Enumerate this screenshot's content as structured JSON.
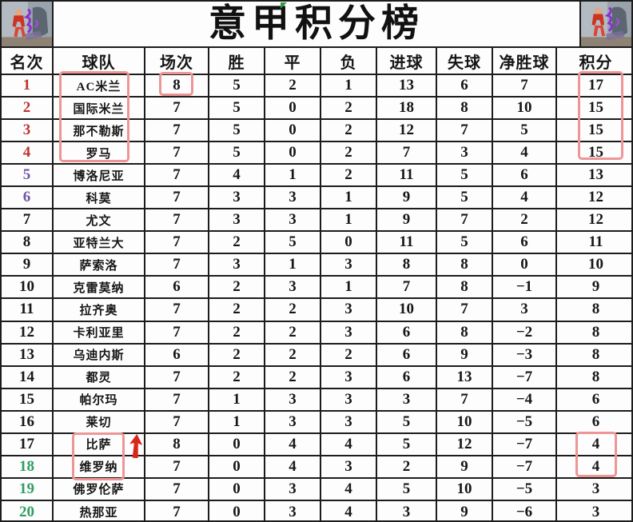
{
  "title": "意甲积分榜",
  "images": {
    "left": "soccer-players-collage",
    "right": "soccer-players-collage"
  },
  "chart_data": {
    "type": "table",
    "title": "意甲积分榜",
    "columns": [
      "名次",
      "球队",
      "场次",
      "胜",
      "平",
      "负",
      "进球",
      "失球",
      "净胜球",
      "积分"
    ],
    "rows": [
      {
        "rank": "1",
        "color": "red",
        "team": "AC米兰",
        "played": "8",
        "wins": "5",
        "draws": "2",
        "losses": "1",
        "goals_for": "13",
        "goals_against": "6",
        "goal_diff": "7",
        "points": "17"
      },
      {
        "rank": "2",
        "color": "red",
        "team": "国际米兰",
        "played": "7",
        "wins": "5",
        "draws": "0",
        "losses": "2",
        "goals_for": "18",
        "goals_against": "8",
        "goal_diff": "10",
        "points": "15"
      },
      {
        "rank": "3",
        "color": "red",
        "team": "那不勒斯",
        "played": "7",
        "wins": "5",
        "draws": "0",
        "losses": "2",
        "goals_for": "12",
        "goals_against": "7",
        "goal_diff": "5",
        "points": "15"
      },
      {
        "rank": "4",
        "color": "red",
        "team": "罗马",
        "played": "7",
        "wins": "5",
        "draws": "0",
        "losses": "2",
        "goals_for": "7",
        "goals_against": "3",
        "goal_diff": "4",
        "points": "15"
      },
      {
        "rank": "5",
        "color": "purple",
        "team": "博洛尼亚",
        "played": "7",
        "wins": "4",
        "draws": "1",
        "losses": "2",
        "goals_for": "11",
        "goals_against": "5",
        "goal_diff": "6",
        "points": "13"
      },
      {
        "rank": "6",
        "color": "purple",
        "team": "科莫",
        "played": "7",
        "wins": "3",
        "draws": "3",
        "losses": "1",
        "goals_for": "9",
        "goals_against": "5",
        "goal_diff": "4",
        "points": "12"
      },
      {
        "rank": "7",
        "color": "black",
        "team": "尤文",
        "played": "7",
        "wins": "3",
        "draws": "3",
        "losses": "1",
        "goals_for": "9",
        "goals_against": "7",
        "goal_diff": "2",
        "points": "12"
      },
      {
        "rank": "8",
        "color": "black",
        "team": "亚特兰大",
        "played": "7",
        "wins": "2",
        "draws": "5",
        "losses": "0",
        "goals_for": "11",
        "goals_against": "5",
        "goal_diff": "6",
        "points": "11"
      },
      {
        "rank": "9",
        "color": "black",
        "team": "萨索洛",
        "played": "7",
        "wins": "3",
        "draws": "1",
        "losses": "3",
        "goals_for": "8",
        "goals_against": "8",
        "goal_diff": "0",
        "points": "10"
      },
      {
        "rank": "10",
        "color": "black",
        "team": "克雷莫纳",
        "played": "6",
        "wins": "2",
        "draws": "3",
        "losses": "1",
        "goals_for": "7",
        "goals_against": "8",
        "goal_diff": "−1",
        "points": "9"
      },
      {
        "rank": "11",
        "color": "black",
        "team": "拉齐奥",
        "played": "7",
        "wins": "2",
        "draws": "2",
        "losses": "3",
        "goals_for": "10",
        "goals_against": "7",
        "goal_diff": "3",
        "points": "8"
      },
      {
        "rank": "12",
        "color": "black",
        "team": "卡利亚里",
        "played": "7",
        "wins": "2",
        "draws": "2",
        "losses": "3",
        "goals_for": "6",
        "goals_against": "8",
        "goal_diff": "−2",
        "points": "8"
      },
      {
        "rank": "13",
        "color": "black",
        "team": "乌迪内斯",
        "played": "6",
        "wins": "2",
        "draws": "2",
        "losses": "2",
        "goals_for": "6",
        "goals_against": "9",
        "goal_diff": "−3",
        "points": "8"
      },
      {
        "rank": "14",
        "color": "black",
        "team": "都灵",
        "played": "7",
        "wins": "2",
        "draws": "2",
        "losses": "3",
        "goals_for": "6",
        "goals_against": "13",
        "goal_diff": "−7",
        "points": "8"
      },
      {
        "rank": "15",
        "color": "black",
        "team": "帕尔玛",
        "played": "7",
        "wins": "1",
        "draws": "3",
        "losses": "3",
        "goals_for": "3",
        "goals_against": "7",
        "goal_diff": "−4",
        "points": "6"
      },
      {
        "rank": "16",
        "color": "black",
        "team": "莱切",
        "played": "7",
        "wins": "1",
        "draws": "3",
        "losses": "3",
        "goals_for": "5",
        "goals_against": "10",
        "goal_diff": "−5",
        "points": "6"
      },
      {
        "rank": "17",
        "color": "black",
        "team": "比萨",
        "played": "8",
        "wins": "0",
        "draws": "4",
        "losses": "4",
        "goals_for": "5",
        "goals_against": "12",
        "goal_diff": "−7",
        "points": "4"
      },
      {
        "rank": "18",
        "color": "green",
        "team": "维罗纳",
        "played": "7",
        "wins": "0",
        "draws": "4",
        "losses": "3",
        "goals_for": "2",
        "goals_against": "9",
        "goal_diff": "−7",
        "points": "4"
      },
      {
        "rank": "19",
        "color": "green",
        "team": "佛罗伦萨",
        "played": "7",
        "wins": "0",
        "draws": "3",
        "losses": "4",
        "goals_for": "5",
        "goals_against": "10",
        "goal_diff": "−5",
        "points": "3"
      },
      {
        "rank": "20",
        "color": "green",
        "team": "热那亚",
        "played": "7",
        "wins": "0",
        "draws": "3",
        "losses": "4",
        "goals_for": "3",
        "goals_against": "9",
        "goal_diff": "−6",
        "points": "3"
      }
    ]
  },
  "annotations": {
    "box_color": "#ee9595",
    "arrow_color": "#d9261a",
    "flag_color": "#2e9e40",
    "highlights": [
      "top4-team-names",
      "ac-milan-matches-played",
      "top4-points",
      "pisa-verona-team-names",
      "pisa-verona-points",
      "up-arrow-beside-pisa"
    ]
  }
}
